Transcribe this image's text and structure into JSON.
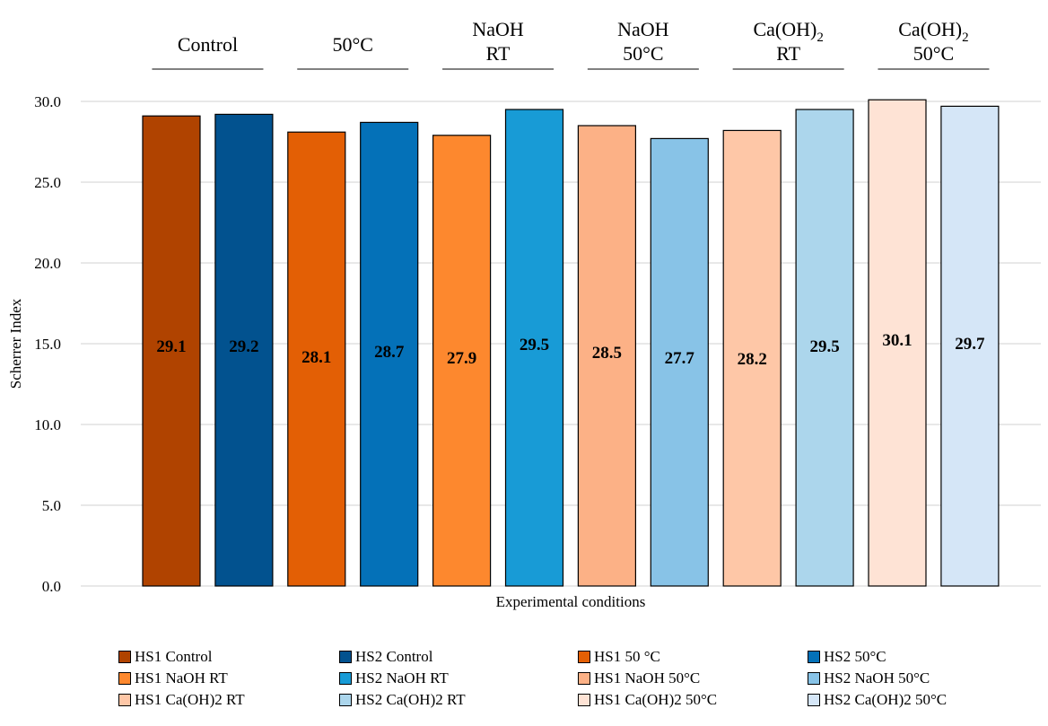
{
  "chart_data": {
    "type": "bar",
    "xlabel": "Experimental conditions",
    "ylabel": "Scherrer Index",
    "ylim": [
      0,
      30.0
    ],
    "yticks": [
      "0.0",
      "5.0",
      "10.0",
      "15.0",
      "20.0",
      "25.0",
      "30.0"
    ],
    "grid": true,
    "legend_placement": "bottom",
    "groups": [
      {
        "label": "Control",
        "bars": [
          0,
          1
        ]
      },
      {
        "label": "50°C",
        "bars": [
          2,
          3
        ]
      },
      {
        "label": "NaOH RT",
        "label_lines": [
          "NaOH",
          "RT"
        ],
        "bars": [
          4,
          5
        ]
      },
      {
        "label": "NaOH 50°C",
        "label_lines": [
          "NaOH",
          "50°C"
        ],
        "bars": [
          6,
          7
        ]
      },
      {
        "label": "Ca(OH)2 RT",
        "label_lines": [
          "Ca(OH)2",
          "RT"
        ],
        "bars": [
          8,
          9
        ]
      },
      {
        "label": "Ca(OH)2 50°C",
        "label_lines": [
          "Ca(OH)2",
          "50°C"
        ],
        "bars": [
          10,
          11
        ]
      }
    ],
    "series": [
      {
        "name": "HS1 Control",
        "value": 29.1,
        "label": "29.1",
        "color": "#b04300"
      },
      {
        "name": "HS2 Control",
        "value": 29.2,
        "label": "29.2",
        "color": "#02528f"
      },
      {
        "name": "HS1 50 °C",
        "value": 28.1,
        "label": "28.1",
        "color": "#e35f05"
      },
      {
        "name": "HS2 50°C",
        "value": 28.7,
        "label": "28.7",
        "color": "#0471b8"
      },
      {
        "name": "HS1 NaOH RT",
        "value": 27.9,
        "label": "27.9",
        "color": "#fd882e"
      },
      {
        "name": "HS2 NaOH RT",
        "value": 29.5,
        "label": "29.5",
        "color": "#189bd6"
      },
      {
        "name": "HS1 NaOH 50°C",
        "value": 28.5,
        "label": "28.5",
        "color": "#fcb186"
      },
      {
        "name": "HS2 NaOH 50°C",
        "value": 27.7,
        "label": "27.7",
        "color": "#88c3e7"
      },
      {
        "name": "HS1 Ca(OH)2 RT",
        "value": 28.2,
        "label": "28.2",
        "color": "#fec7a7"
      },
      {
        "name": "HS2 Ca(OH)2 RT",
        "value": 29.5,
        "label": "29.5",
        "color": "#acd6ec"
      },
      {
        "name": "HS1 Ca(OH)2 50°C",
        "value": 30.1,
        "label": "30.1",
        "color": "#fee3d5"
      },
      {
        "name": "HS2 Ca(OH)2 50°C",
        "value": 29.7,
        "label": "29.7",
        "color": "#d5e6f7"
      }
    ]
  }
}
